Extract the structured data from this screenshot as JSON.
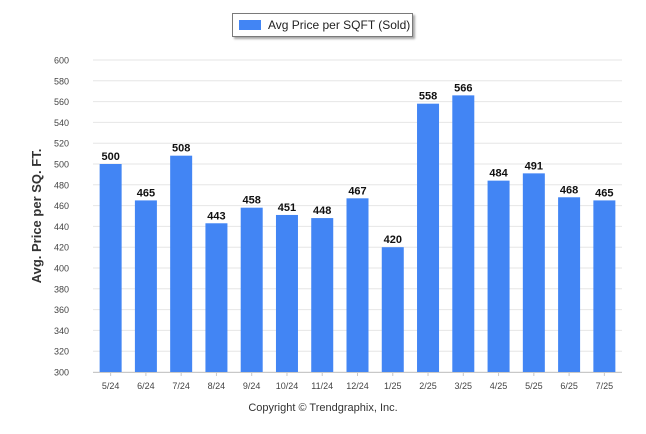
{
  "chart_data": {
    "type": "bar",
    "title": "",
    "xlabel": "",
    "ylabel": "Avg. Price per SQ. FT.",
    "ylim": [
      300,
      600
    ],
    "yticks": [
      300,
      320,
      340,
      360,
      380,
      400,
      420,
      440,
      460,
      480,
      500,
      520,
      540,
      560,
      580,
      600
    ],
    "grid": true,
    "legend_position": "top-center",
    "categories": [
      "5/24",
      "6/24",
      "7/24",
      "8/24",
      "9/24",
      "10/24",
      "11/24",
      "12/24",
      "1/25",
      "2/25",
      "3/25",
      "4/25",
      "5/25",
      "6/25",
      "7/25"
    ],
    "series": [
      {
        "name": "Avg Price per SQFT (Sold)",
        "color": "#4285f4",
        "values": [
          500,
          465,
          508,
          443,
          458,
          451,
          448,
          467,
          420,
          558,
          566,
          484,
          491,
          468,
          465
        ]
      }
    ]
  },
  "footer": {
    "copyright": "Copyright © Trendgraphix, Inc."
  }
}
